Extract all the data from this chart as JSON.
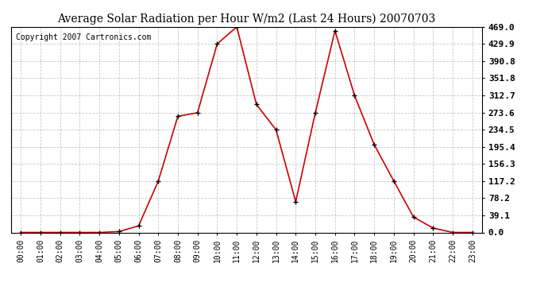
{
  "title": "Average Solar Radiation per Hour W/m2 (Last 24 Hours) 20070703",
  "copyright_text": "Copyright 2007 Cartronics.com",
  "hours": [
    "00:00",
    "01:00",
    "02:00",
    "03:00",
    "04:00",
    "05:00",
    "06:00",
    "07:00",
    "08:00",
    "09:00",
    "10:00",
    "11:00",
    "12:00",
    "13:00",
    "14:00",
    "15:00",
    "16:00",
    "17:00",
    "18:00",
    "19:00",
    "20:00",
    "21:00",
    "22:00",
    "23:00"
  ],
  "values": [
    0,
    0,
    0,
    0,
    0,
    2,
    15,
    117,
    265,
    273,
    430,
    469,
    292,
    234,
    70,
    273,
    460,
    312,
    200,
    117,
    35,
    10,
    0,
    0
  ],
  "yticks": [
    0.0,
    39.1,
    78.2,
    117.2,
    156.3,
    195.4,
    234.5,
    273.6,
    312.7,
    351.8,
    390.8,
    429.9,
    469.0
  ],
  "ymax": 469.0,
  "ymin": 0.0,
  "line_color": "#cc0000",
  "marker_color": "#000000",
  "bg_color": "#ffffff",
  "grid_color": "#c8c8c8",
  "title_fontsize": 10,
  "copyright_fontsize": 7,
  "tick_fontsize": 7,
  "ytick_fontsize": 8
}
